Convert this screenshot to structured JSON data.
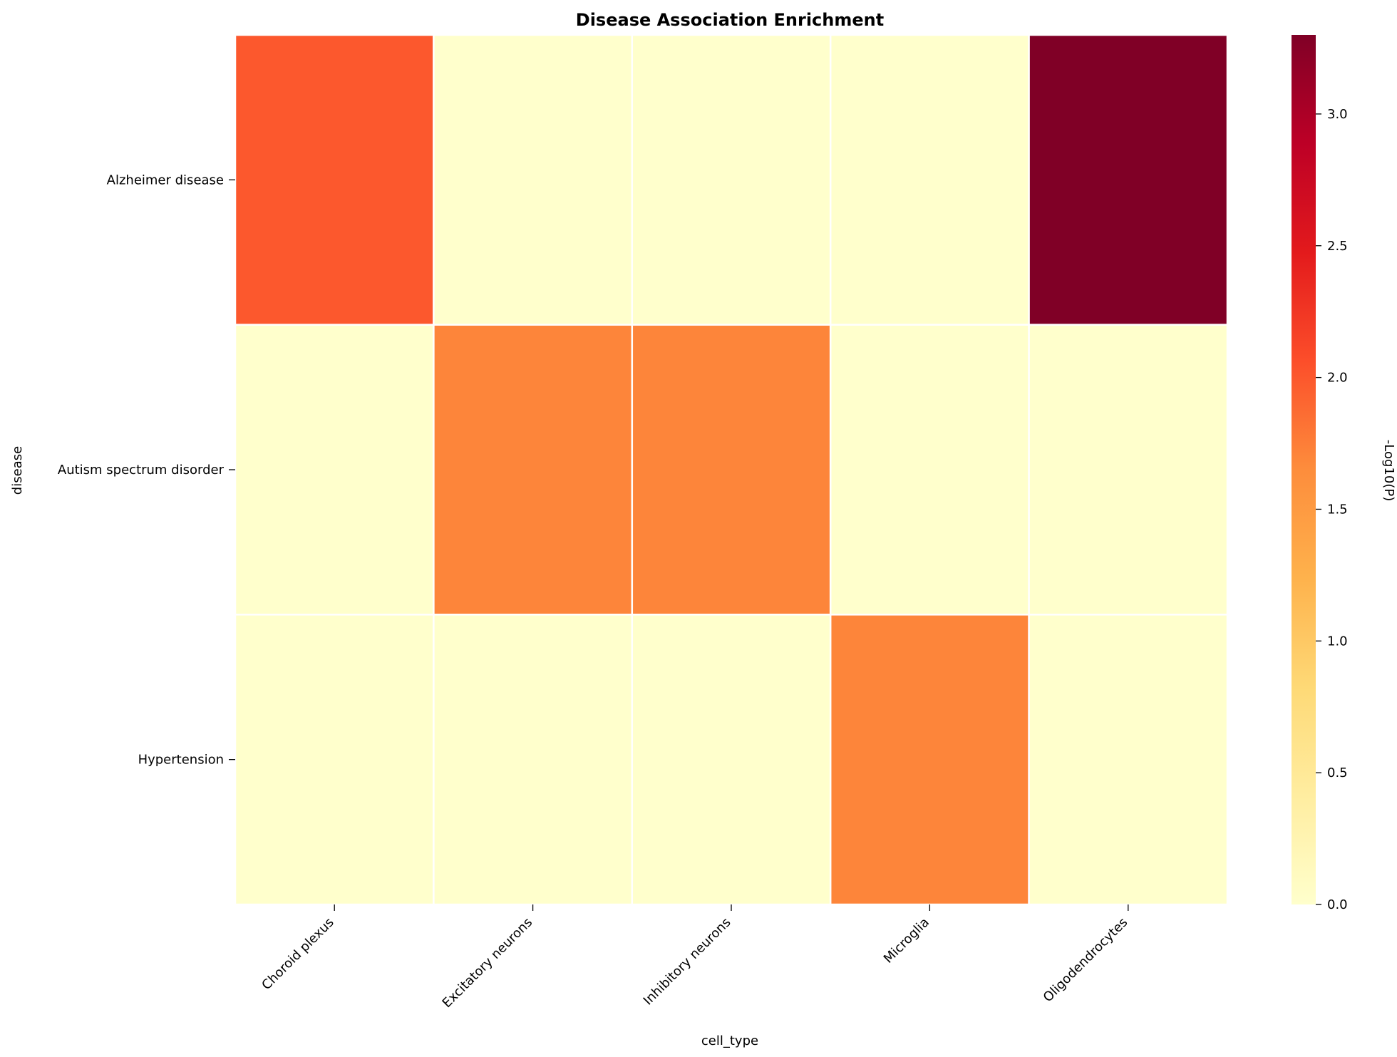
{
  "chart_data": {
    "type": "heatmap",
    "title": "Disease Association Enrichment",
    "xlabel": "cell_type",
    "ylabel": "disease",
    "x_categories": [
      "Choroid plexus",
      "Excitatory neurons",
      "Inhibitory neurons",
      "Microglia",
      "Oligodendrocytes"
    ],
    "y_categories": [
      "Alzheimer disease",
      "Autism spectrum disorder",
      "Hypertension"
    ],
    "values": [
      [
        2.0,
        0.0,
        0.0,
        0.0,
        3.3
      ],
      [
        0.0,
        1.7,
        1.7,
        0.0,
        0.0
      ],
      [
        0.0,
        0.0,
        0.0,
        1.7,
        0.0
      ]
    ],
    "colorbar": {
      "label": "-Log10(P)",
      "min": 0.0,
      "max": 3.3,
      "ticks": [
        0.0,
        0.5,
        1.0,
        1.5,
        2.0,
        2.5,
        3.0
      ],
      "tick_labels": [
        "0.0",
        "0.5",
        "1.0",
        "1.5",
        "2.0",
        "2.5",
        "3.0"
      ]
    },
    "colormap": "YlOrRd",
    "cell_border_color": "#ffffff"
  }
}
